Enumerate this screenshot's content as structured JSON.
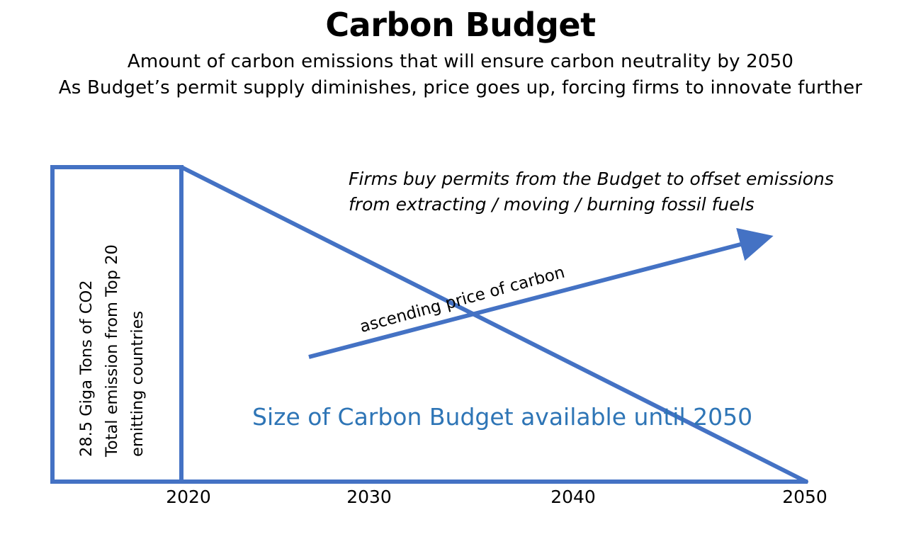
{
  "header": {
    "title": "Carbon Budget",
    "subtitle_line1": "Amount of carbon emissions that will ensure carbon neutrality by 2050",
    "subtitle_line2": "As Budget’s permit supply diminishes, price goes up, forcing firms to innovate further"
  },
  "emission_box": {
    "line1": "28.5 Giga Tons of CO2",
    "line2": "Total emission from Top 20",
    "line3": "emitting countries"
  },
  "annotation": {
    "line1": "Firms buy permits from the Budget to offset emissions",
    "line2": "from extracting / moving /  burning fossil fuels"
  },
  "price_arrow_label": "ascending price of carbon",
  "budget_label": "Size of Carbon Budget available until 2050",
  "axis_ticks": [
    "2020",
    "2030",
    "2040",
    "2050"
  ],
  "colors": {
    "line": "#4472c4",
    "budget_text": "#2e75b6"
  }
}
